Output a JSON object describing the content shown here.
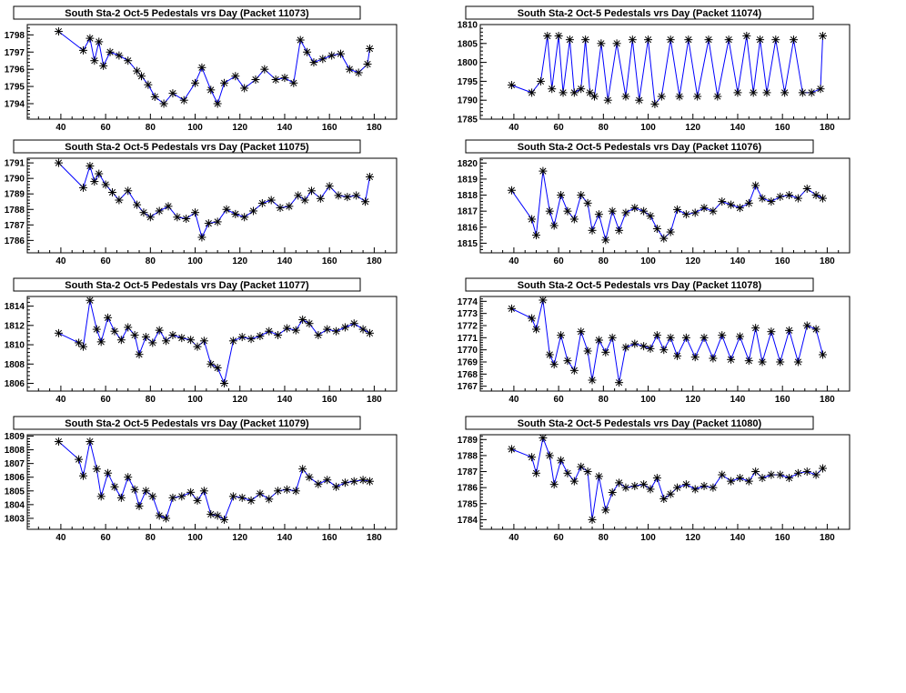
{
  "chart_data": [
    {
      "type": "line",
      "title": "South Sta-2 Oct-5 Pedestals vrs Day (Packet 11073)",
      "xlim": [
        25,
        190
      ],
      "ylim": [
        1793.1,
        1798.6
      ],
      "xticks": [
        40,
        60,
        80,
        100,
        120,
        140,
        160,
        180
      ],
      "yticks": [
        1794,
        1795,
        1796,
        1797,
        1798
      ],
      "colors": {
        "line": "#0000ff",
        "marker": "#000000"
      },
      "x": [
        39,
        50,
        53,
        55,
        57,
        59,
        62,
        66,
        70,
        74,
        76,
        79,
        82,
        86,
        90,
        95,
        100,
        103,
        107,
        110,
        113,
        118,
        122,
        127,
        131,
        136,
        140,
        144,
        147,
        150,
        153,
        157,
        161,
        165,
        169,
        173,
        177,
        178
      ],
      "y": [
        1798.2,
        1797.1,
        1797.8,
        1796.5,
        1797.6,
        1796.2,
        1797.0,
        1796.8,
        1796.5,
        1795.9,
        1795.6,
        1795.1,
        1794.4,
        1794.0,
        1794.6,
        1794.2,
        1795.2,
        1796.1,
        1794.8,
        1794.0,
        1795.2,
        1795.6,
        1794.9,
        1795.4,
        1796.0,
        1795.4,
        1795.5,
        1795.2,
        1797.7,
        1797.0,
        1796.4,
        1796.6,
        1796.8,
        1796.9,
        1796.0,
        1795.8,
        1796.3,
        1797.2
      ]
    },
    {
      "type": "line",
      "title": "South Sta-2 Oct-5 Pedestals vrs Day (Packet 11074)",
      "xlim": [
        25,
        190
      ],
      "ylim": [
        1785,
        1810
      ],
      "xticks": [
        40,
        60,
        80,
        100,
        120,
        140,
        160,
        180
      ],
      "yticks": [
        1785,
        1790,
        1795,
        1800,
        1805,
        1810
      ],
      "colors": {
        "line": "#0000ff",
        "marker": "#000000"
      },
      "x": [
        39,
        48,
        52,
        55,
        57,
        60,
        62,
        65,
        67,
        70,
        72,
        74,
        76,
        79,
        82,
        86,
        90,
        93,
        96,
        100,
        103,
        106,
        110,
        114,
        118,
        122,
        127,
        131,
        136,
        140,
        144,
        147,
        150,
        153,
        157,
        161,
        165,
        169,
        173,
        177,
        178
      ],
      "y": [
        1794,
        1792,
        1795,
        1807,
        1793,
        1807,
        1792,
        1806,
        1792,
        1793,
        1806,
        1792,
        1791,
        1805,
        1790,
        1805,
        1791,
        1806,
        1790,
        1806,
        1789,
        1791,
        1806,
        1791,
        1806,
        1791,
        1806,
        1791,
        1806,
        1792,
        1807,
        1792,
        1806,
        1792,
        1806,
        1792,
        1806,
        1792,
        1792,
        1793,
        1807
      ]
    },
    {
      "type": "line",
      "title": "South Sta-2 Oct-5 Pedestals vrs Day (Packet 11075)",
      "xlim": [
        25,
        190
      ],
      "ylim": [
        1785.2,
        1791.3
      ],
      "xticks": [
        40,
        60,
        80,
        100,
        120,
        140,
        160,
        180
      ],
      "yticks": [
        1786,
        1787,
        1788,
        1789,
        1790,
        1791
      ],
      "colors": {
        "line": "#0000ff",
        "marker": "#000000"
      },
      "x": [
        39,
        50,
        53,
        55,
        57,
        60,
        63,
        66,
        70,
        74,
        77,
        80,
        84,
        88,
        92,
        96,
        100,
        103,
        106,
        110,
        114,
        118,
        122,
        126,
        130,
        134,
        138,
        142,
        146,
        149,
        152,
        156,
        160,
        164,
        168,
        172,
        176,
        178
      ],
      "y": [
        1791.0,
        1789.4,
        1790.8,
        1789.8,
        1790.3,
        1789.6,
        1789.1,
        1788.6,
        1789.2,
        1788.3,
        1787.8,
        1787.5,
        1787.9,
        1788.2,
        1787.5,
        1787.4,
        1787.8,
        1786.2,
        1787.1,
        1787.2,
        1788.0,
        1787.7,
        1787.5,
        1787.9,
        1788.4,
        1788.6,
        1788.1,
        1788.2,
        1788.9,
        1788.6,
        1789.2,
        1788.7,
        1789.5,
        1788.9,
        1788.8,
        1788.9,
        1788.5,
        1790.1
      ]
    },
    {
      "type": "line",
      "title": "South Sta-2 Oct-5 Pedestals vrs Day (Packet 11076)",
      "xlim": [
        25,
        190
      ],
      "ylim": [
        1814.4,
        1820.3
      ],
      "xticks": [
        40,
        60,
        80,
        100,
        120,
        140,
        160,
        180
      ],
      "yticks": [
        1815,
        1816,
        1817,
        1818,
        1819,
        1820
      ],
      "colors": {
        "line": "#0000ff",
        "marker": "#000000"
      },
      "x": [
        39,
        48,
        50,
        53,
        56,
        58,
        61,
        64,
        67,
        70,
        73,
        75,
        78,
        81,
        84,
        87,
        90,
        94,
        98,
        101,
        104,
        107,
        110,
        113,
        117,
        121,
        125,
        129,
        133,
        137,
        141,
        145,
        148,
        151,
        155,
        159,
        163,
        167,
        171,
        175,
        178
      ],
      "y": [
        1818.3,
        1816.5,
        1815.5,
        1819.5,
        1817.0,
        1816.1,
        1818.0,
        1817.0,
        1816.5,
        1818.0,
        1817.5,
        1815.8,
        1816.8,
        1815.2,
        1817.0,
        1815.8,
        1816.9,
        1817.2,
        1817.0,
        1816.7,
        1815.9,
        1815.3,
        1815.7,
        1817.1,
        1816.8,
        1816.9,
        1817.2,
        1817.0,
        1817.6,
        1817.4,
        1817.2,
        1817.5,
        1818.6,
        1817.8,
        1817.6,
        1817.9,
        1818.0,
        1817.8,
        1818.4,
        1818.0,
        1817.8
      ]
    },
    {
      "type": "line",
      "title": "South Sta-2 Oct-5 Pedestals vrs Day (Packet 11077)",
      "xlim": [
        25,
        190
      ],
      "ylim": [
        1805.2,
        1815.0
      ],
      "xticks": [
        40,
        60,
        80,
        100,
        120,
        140,
        160,
        180
      ],
      "yticks": [
        1806,
        1808,
        1810,
        1812,
        1814
      ],
      "colors": {
        "line": "#0000ff",
        "marker": "#000000"
      },
      "x": [
        39,
        48,
        50,
        53,
        56,
        58,
        61,
        64,
        67,
        70,
        73,
        75,
        78,
        81,
        84,
        87,
        90,
        94,
        98,
        101,
        104,
        107,
        110,
        113,
        117,
        121,
        125,
        129,
        133,
        137,
        141,
        145,
        148,
        151,
        155,
        159,
        163,
        167,
        171,
        175,
        178
      ],
      "y": [
        1811.2,
        1810.2,
        1809.8,
        1814.6,
        1811.6,
        1810.3,
        1812.8,
        1811.4,
        1810.5,
        1811.8,
        1811.0,
        1809.0,
        1810.8,
        1810.2,
        1811.5,
        1810.4,
        1811.0,
        1810.7,
        1810.5,
        1809.8,
        1810.4,
        1808.0,
        1807.6,
        1806.0,
        1810.4,
        1810.8,
        1810.6,
        1810.9,
        1811.4,
        1811.0,
        1811.7,
        1811.5,
        1812.6,
        1812.2,
        1811.0,
        1811.6,
        1811.4,
        1811.8,
        1812.2,
        1811.6,
        1811.2
      ]
    },
    {
      "type": "line",
      "title": "South Sta-2 Oct-5 Pedestals vrs Day (Packet 11078)",
      "xlim": [
        25,
        190
      ],
      "ylim": [
        1766.6,
        1774.4
      ],
      "xticks": [
        40,
        60,
        80,
        100,
        120,
        140,
        160,
        180
      ],
      "yticks": [
        1767,
        1768,
        1769,
        1770,
        1771,
        1772,
        1773,
        1774
      ],
      "colors": {
        "line": "#0000ff",
        "marker": "#000000"
      },
      "x": [
        39,
        48,
        50,
        53,
        56,
        58,
        61,
        64,
        67,
        70,
        73,
        75,
        78,
        81,
        84,
        87,
        90,
        94,
        98,
        101,
        104,
        107,
        110,
        113,
        117,
        121,
        125,
        129,
        133,
        137,
        141,
        145,
        148,
        151,
        155,
        159,
        163,
        167,
        171,
        175,
        178
      ],
      "y": [
        1773.4,
        1772.6,
        1771.7,
        1774.1,
        1769.6,
        1768.8,
        1771.2,
        1769.1,
        1768.3,
        1771.5,
        1769.9,
        1767.5,
        1770.8,
        1769.8,
        1771.0,
        1767.3,
        1770.2,
        1770.5,
        1770.3,
        1770.1,
        1771.2,
        1770.0,
        1771.0,
        1769.5,
        1771.0,
        1769.4,
        1771.0,
        1769.3,
        1771.2,
        1769.2,
        1771.1,
        1769.1,
        1771.8,
        1769.0,
        1771.5,
        1769.0,
        1771.6,
        1769.0,
        1772.0,
        1771.7,
        1769.6
      ]
    },
    {
      "type": "line",
      "title": "South Sta-2 Oct-5 Pedestals vrs Day (Packet 11079)",
      "xlim": [
        25,
        190
      ],
      "ylim": [
        1802.2,
        1809.1
      ],
      "xticks": [
        40,
        60,
        80,
        100,
        120,
        140,
        160,
        180
      ],
      "yticks": [
        1803,
        1804,
        1805,
        1806,
        1807,
        1808,
        1809
      ],
      "colors": {
        "line": "#0000ff",
        "marker": "#000000"
      },
      "x": [
        39,
        48,
        50,
        53,
        56,
        58,
        61,
        64,
        67,
        70,
        73,
        75,
        78,
        81,
        84,
        87,
        90,
        94,
        98,
        101,
        104,
        107,
        110,
        113,
        117,
        121,
        125,
        129,
        133,
        137,
        141,
        145,
        148,
        151,
        155,
        159,
        163,
        167,
        171,
        175,
        178
      ],
      "y": [
        1808.6,
        1807.3,
        1806.1,
        1808.6,
        1806.6,
        1804.6,
        1806.3,
        1805.3,
        1804.5,
        1806.0,
        1805.1,
        1803.9,
        1805.0,
        1804.6,
        1803.2,
        1803.0,
        1804.5,
        1804.6,
        1804.9,
        1804.3,
        1805.0,
        1803.3,
        1803.2,
        1802.9,
        1804.6,
        1804.5,
        1804.3,
        1804.8,
        1804.4,
        1805.0,
        1805.1,
        1805.0,
        1806.6,
        1806.0,
        1805.5,
        1805.8,
        1805.3,
        1805.6,
        1805.7,
        1805.8,
        1805.7
      ]
    },
    {
      "type": "line",
      "title": "South Sta-2 Oct-5 Pedestals vrs Day (Packet 11080)",
      "xlim": [
        25,
        190
      ],
      "ylim": [
        1783.4,
        1789.3
      ],
      "xticks": [
        40,
        60,
        80,
        100,
        120,
        140,
        160,
        180
      ],
      "yticks": [
        1784,
        1785,
        1786,
        1787,
        1788,
        1789
      ],
      "colors": {
        "line": "#0000ff",
        "marker": "#000000"
      },
      "x": [
        39,
        48,
        50,
        53,
        56,
        58,
        61,
        64,
        67,
        70,
        73,
        75,
        78,
        81,
        84,
        87,
        90,
        94,
        98,
        101,
        104,
        107,
        110,
        113,
        117,
        121,
        125,
        129,
        133,
        137,
        141,
        145,
        148,
        151,
        155,
        159,
        163,
        167,
        171,
        175,
        178
      ],
      "y": [
        1788.4,
        1787.9,
        1786.9,
        1789.1,
        1788.0,
        1786.2,
        1787.7,
        1786.9,
        1786.4,
        1787.3,
        1787.0,
        1784.0,
        1786.7,
        1784.6,
        1785.7,
        1786.3,
        1786.0,
        1786.1,
        1786.2,
        1785.9,
        1786.6,
        1785.3,
        1785.6,
        1786.0,
        1786.2,
        1785.9,
        1786.1,
        1786.0,
        1786.8,
        1786.4,
        1786.6,
        1786.4,
        1787.0,
        1786.6,
        1786.8,
        1786.8,
        1786.6,
        1786.9,
        1787.0,
        1786.8,
        1787.2
      ]
    }
  ]
}
